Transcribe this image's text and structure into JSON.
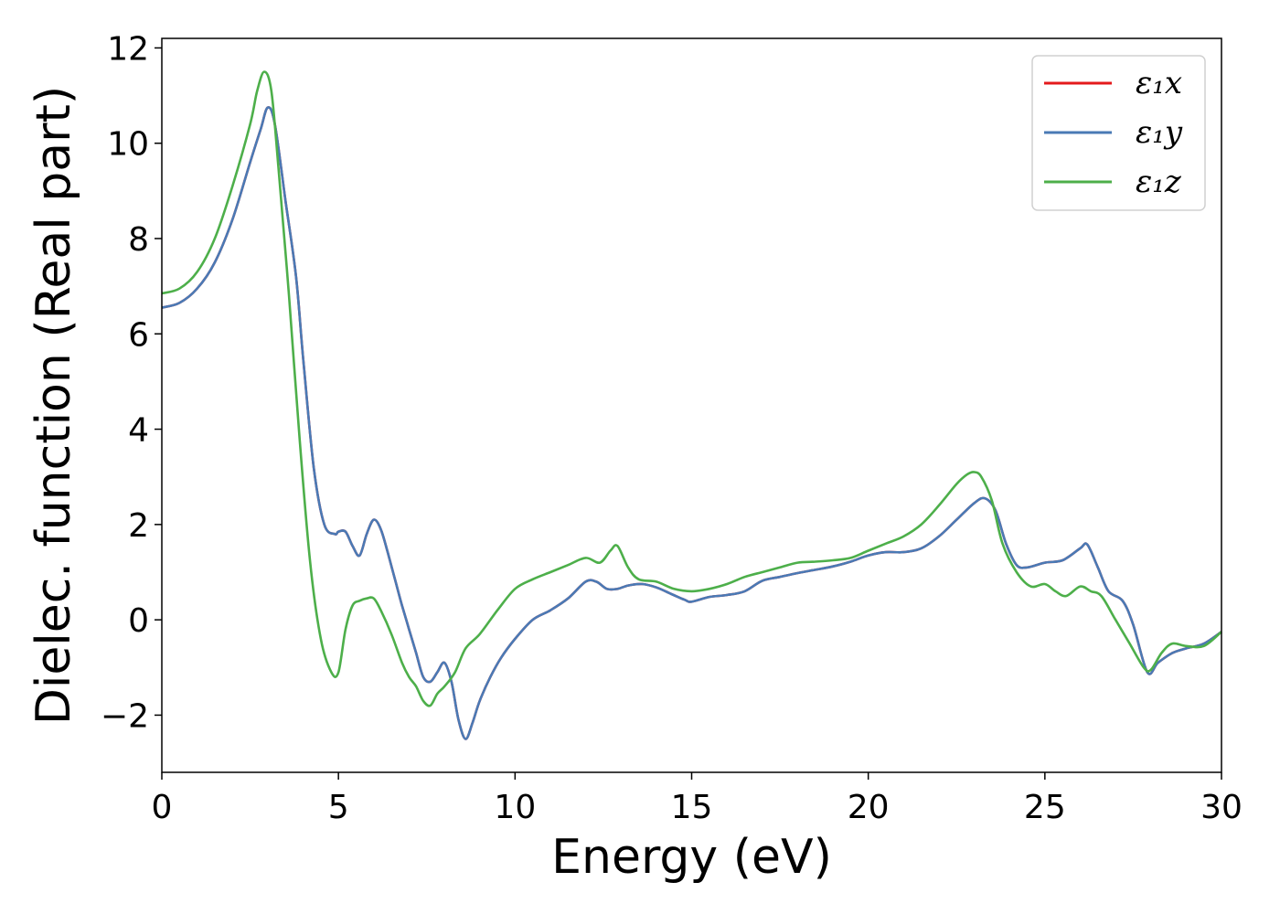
{
  "chart_data": {
    "type": "line",
    "xlabel": "Energy (eV)",
    "ylabel": "Dielec. function (Real part)",
    "xlim": [
      0,
      30
    ],
    "ylim": [
      -3.2,
      12.2
    ],
    "xticks": [
      0,
      5,
      10,
      15,
      20,
      25,
      30
    ],
    "xtick_labels": [
      "0",
      "5",
      "10",
      "15",
      "20",
      "25",
      "30"
    ],
    "yticks": [
      -2,
      0,
      2,
      4,
      6,
      8,
      10,
      12
    ],
    "ytick_labels": [
      "−2",
      "0",
      "2",
      "4",
      "6",
      "8",
      "10",
      "12"
    ],
    "grid": false,
    "legend_position": "top-right",
    "series": [
      {
        "name": "ε₁x",
        "color": "#e41a1c",
        "x": [
          0,
          0.5,
          1,
          1.5,
          2,
          2.5,
          2.8,
          3.0,
          3.2,
          3.5,
          3.8,
          4.0,
          4.3,
          4.6,
          4.9,
          5.0,
          5.2,
          5.4,
          5.6,
          5.8,
          6.0,
          6.2,
          6.4,
          6.6,
          6.8,
          7.0,
          7.2,
          7.4,
          7.6,
          7.8,
          8.0,
          8.2,
          8.4,
          8.6,
          8.8,
          9.0,
          9.3,
          9.6,
          10,
          10.5,
          11,
          11.5,
          12,
          12.3,
          12.6,
          12.9,
          13.2,
          13.6,
          14,
          14.4,
          14.8,
          15,
          15.5,
          16,
          16.5,
          17,
          17.5,
          18,
          18.5,
          19,
          19.5,
          20,
          20.5,
          21,
          21.5,
          22,
          22.5,
          23,
          23.3,
          23.6,
          23.9,
          24.2,
          24.5,
          25,
          25.5,
          26,
          26.2,
          26.5,
          26.8,
          27.2,
          27.5,
          27.9,
          28.2,
          28.6,
          29,
          29.5,
          30
        ],
        "y": [
          6.55,
          6.65,
          6.95,
          7.5,
          8.4,
          9.6,
          10.3,
          10.75,
          10.4,
          8.8,
          7.2,
          5.5,
          3.2,
          2.0,
          1.8,
          1.85,
          1.85,
          1.55,
          1.35,
          1.8,
          2.1,
          1.9,
          1.4,
          0.85,
          0.3,
          -0.2,
          -0.7,
          -1.2,
          -1.3,
          -1.1,
          -0.9,
          -1.3,
          -2.1,
          -2.5,
          -2.15,
          -1.7,
          -1.2,
          -0.8,
          -0.4,
          0.0,
          0.2,
          0.45,
          0.8,
          0.8,
          0.65,
          0.65,
          0.72,
          0.75,
          0.68,
          0.55,
          0.42,
          0.38,
          0.48,
          0.52,
          0.6,
          0.82,
          0.9,
          0.98,
          1.05,
          1.12,
          1.22,
          1.35,
          1.42,
          1.42,
          1.5,
          1.75,
          2.1,
          2.45,
          2.55,
          2.3,
          1.6,
          1.15,
          1.1,
          1.2,
          1.25,
          1.5,
          1.58,
          1.1,
          0.6,
          0.4,
          -0.1,
          -1.1,
          -0.9,
          -0.7,
          -0.6,
          -0.5,
          -0.25
        ]
      },
      {
        "name": "ε₁y",
        "color": "#4a7ab5",
        "x": [
          0,
          0.5,
          1,
          1.5,
          2,
          2.5,
          2.8,
          3.0,
          3.2,
          3.5,
          3.8,
          4.0,
          4.3,
          4.6,
          4.9,
          5.0,
          5.2,
          5.4,
          5.6,
          5.8,
          6.0,
          6.2,
          6.4,
          6.6,
          6.8,
          7.0,
          7.2,
          7.4,
          7.6,
          7.8,
          8.0,
          8.2,
          8.4,
          8.6,
          8.8,
          9.0,
          9.3,
          9.6,
          10,
          10.5,
          11,
          11.5,
          12,
          12.3,
          12.6,
          12.9,
          13.2,
          13.6,
          14,
          14.4,
          14.8,
          15,
          15.5,
          16,
          16.5,
          17,
          17.5,
          18,
          18.5,
          19,
          19.5,
          20,
          20.5,
          21,
          21.5,
          22,
          22.5,
          23,
          23.3,
          23.6,
          23.9,
          24.2,
          24.5,
          25,
          25.5,
          26,
          26.2,
          26.5,
          26.8,
          27.2,
          27.5,
          27.9,
          28.2,
          28.6,
          29,
          29.5,
          30
        ],
        "y": [
          6.55,
          6.65,
          6.95,
          7.5,
          8.4,
          9.6,
          10.3,
          10.75,
          10.4,
          8.8,
          7.2,
          5.5,
          3.2,
          2.0,
          1.8,
          1.85,
          1.85,
          1.55,
          1.35,
          1.8,
          2.1,
          1.9,
          1.4,
          0.85,
          0.3,
          -0.2,
          -0.7,
          -1.2,
          -1.3,
          -1.1,
          -0.9,
          -1.3,
          -2.1,
          -2.5,
          -2.15,
          -1.7,
          -1.2,
          -0.8,
          -0.4,
          0.0,
          0.2,
          0.45,
          0.8,
          0.8,
          0.65,
          0.65,
          0.72,
          0.75,
          0.68,
          0.55,
          0.42,
          0.38,
          0.48,
          0.52,
          0.6,
          0.82,
          0.9,
          0.98,
          1.05,
          1.12,
          1.22,
          1.35,
          1.42,
          1.42,
          1.5,
          1.75,
          2.1,
          2.45,
          2.55,
          2.3,
          1.6,
          1.15,
          1.1,
          1.2,
          1.25,
          1.5,
          1.58,
          1.1,
          0.6,
          0.4,
          -0.1,
          -1.1,
          -0.9,
          -0.7,
          -0.6,
          -0.5,
          -0.25
        ]
      },
      {
        "name": "ε₁z",
        "color": "#4daf4a",
        "x": [
          0,
          0.5,
          1,
          1.5,
          2,
          2.5,
          2.7,
          2.9,
          3.1,
          3.3,
          3.6,
          3.9,
          4.2,
          4.5,
          4.8,
          5.0,
          5.2,
          5.4,
          5.6,
          5.8,
          6.0,
          6.2,
          6.5,
          6.8,
          7.0,
          7.2,
          7.4,
          7.6,
          7.8,
          8.0,
          8.3,
          8.6,
          9.0,
          9.5,
          10,
          10.5,
          11,
          11.5,
          12,
          12.4,
          12.7,
          12.9,
          13.2,
          13.5,
          14,
          14.5,
          15,
          15.5,
          16,
          16.5,
          17,
          17.5,
          18,
          18.5,
          19,
          19.5,
          20,
          20.5,
          21,
          21.5,
          22,
          22.5,
          22.8,
          23.0,
          23.2,
          23.5,
          23.8,
          24.2,
          24.6,
          25,
          25.3,
          25.6,
          26,
          26.3,
          26.6,
          27,
          27.4,
          27.8,
          28.0,
          28.3,
          28.6,
          29,
          29.5,
          30
        ],
        "y": [
          6.85,
          6.95,
          7.3,
          8.0,
          9.1,
          10.4,
          11.1,
          11.5,
          11.1,
          9.5,
          6.8,
          3.8,
          1.2,
          -0.4,
          -1.1,
          -1.1,
          -0.2,
          0.3,
          0.4,
          0.45,
          0.45,
          0.2,
          -0.3,
          -0.9,
          -1.2,
          -1.4,
          -1.7,
          -1.8,
          -1.55,
          -1.4,
          -1.1,
          -0.6,
          -0.3,
          0.2,
          0.65,
          0.85,
          1.0,
          1.15,
          1.3,
          1.2,
          1.45,
          1.55,
          1.1,
          0.85,
          0.8,
          0.65,
          0.6,
          0.65,
          0.75,
          0.9,
          1.0,
          1.1,
          1.2,
          1.22,
          1.25,
          1.3,
          1.45,
          1.6,
          1.75,
          2.0,
          2.4,
          2.85,
          3.05,
          3.1,
          3.0,
          2.5,
          1.6,
          1.0,
          0.7,
          0.75,
          0.6,
          0.5,
          0.7,
          0.6,
          0.5,
          0.0,
          -0.5,
          -1.0,
          -1.05,
          -0.7,
          -0.5,
          -0.55,
          -0.55,
          -0.25
        ]
      }
    ]
  }
}
